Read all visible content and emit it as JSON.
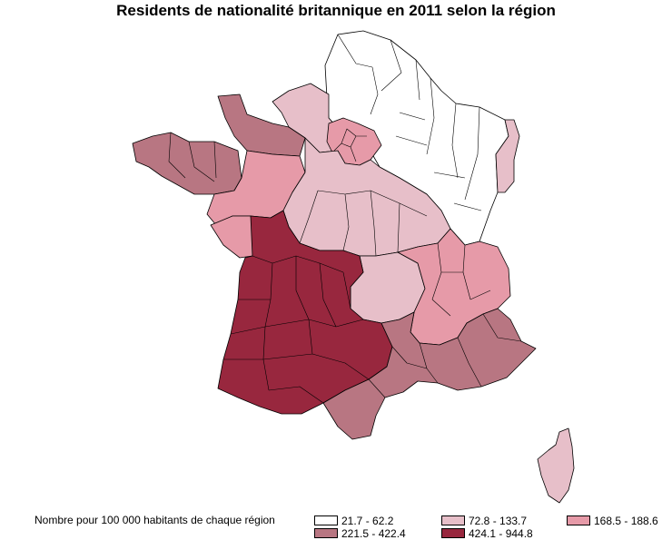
{
  "title": "Residents de nationalité britannique en 2011 selon la région",
  "legend": {
    "label": "Nombre pour 100 000 habitants de chaque région",
    "classes": [
      {
        "range": "21.7 - 62.2",
        "color": "#ffffff"
      },
      {
        "range": "72.8 - 133.7",
        "color": "#e7bfc9"
      },
      {
        "range": "168.5 - 188.6",
        "color": "#e69aa8"
      },
      {
        "range": "221.5 - 422.4",
        "color": "#b87682"
      },
      {
        "range": "424.1 - 944.8",
        "color": "#98273e"
      }
    ]
  }
}
